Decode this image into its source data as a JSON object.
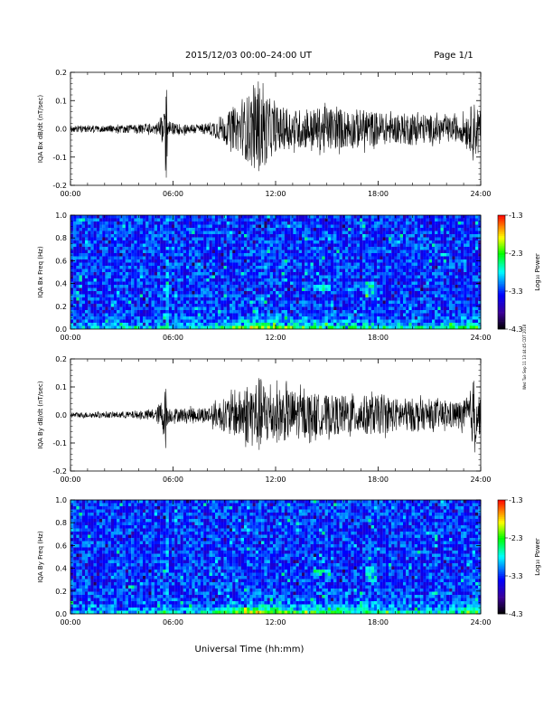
{
  "header": {
    "title": "2015/12/03  00:00–24:00 UT",
    "page": "Page 1/1"
  },
  "side_stamp": "Wed Tue Sep 11 13:44:45 CDT 2018",
  "xlabel_bottom": "Universal Time (hh:mm)",
  "colorbar": {
    "label": "Log₁₀ Power",
    "ticks": [
      "-1.3",
      "-2.3",
      "-3.3",
      "-4.3"
    ],
    "colors": [
      "#ff0000",
      "#ff8000",
      "#ffff00",
      "#00ff00",
      "#00ffff",
      "#0000ff",
      "#3000a0",
      "#000000"
    ]
  },
  "chart_data": [
    {
      "type": "line",
      "ylabel": "IQA Bx dB/dt (nT/sec)",
      "ylim": [
        -0.2,
        0.2
      ],
      "yticks": [
        "0.2",
        "0.1",
        "0.0",
        "-0.1",
        "-0.2"
      ],
      "xticks": [
        "00:00",
        "06:00",
        "12:00",
        "18:00",
        "24:00"
      ],
      "xlim_hours": [
        0,
        24
      ],
      "series": [
        {
          "x": [
            0,
            1,
            2,
            3,
            4,
            5,
            5.5,
            5.6,
            5.7,
            6,
            7,
            8,
            9,
            10,
            10.5,
            11,
            11.5,
            12,
            13,
            14,
            15,
            16,
            17,
            18,
            19,
            20,
            21,
            22,
            23,
            23.7,
            24
          ],
          "amplitude": [
            0.012,
            0.012,
            0.012,
            0.014,
            0.016,
            0.02,
            0.06,
            0.2,
            0.03,
            0.02,
            0.018,
            0.02,
            0.05,
            0.09,
            0.13,
            0.16,
            0.12,
            0.08,
            0.07,
            0.07,
            0.08,
            0.07,
            0.07,
            0.06,
            0.05,
            0.06,
            0.05,
            0.04,
            0.05,
            0.1,
            0.06
          ]
        }
      ]
    },
    {
      "type": "heatmap",
      "ylabel": "IQA Bx Freq (Hz)",
      "ylim": [
        0.0,
        1.0
      ],
      "yticks": [
        "1.0",
        "0.8",
        "0.6",
        "0.4",
        "0.2",
        "0.0"
      ],
      "xticks": [
        "00:00",
        "06:00",
        "12:00",
        "18:00",
        "24:00"
      ],
      "xlim_hours": [
        0,
        24
      ],
      "colorbar_range": [
        -4.3,
        -1.3
      ]
    },
    {
      "type": "line",
      "ylabel": "IQA By dB/dt (nT/sec)",
      "ylim": [
        -0.2,
        0.2
      ],
      "yticks": [
        "0.2",
        "0.1",
        "0.0",
        "-0.1",
        "-0.2"
      ],
      "xticks": [
        "00:00",
        "06:00",
        "12:00",
        "18:00",
        "24:00"
      ],
      "xlim_hours": [
        0,
        24
      ],
      "series": [
        {
          "x": [
            0,
            1,
            2,
            3,
            4,
            5,
            5.5,
            5.6,
            5.7,
            6,
            7,
            8,
            9,
            10,
            10.5,
            11,
            11.5,
            12,
            13,
            14,
            15,
            16,
            17,
            18,
            19,
            20,
            21,
            22,
            23,
            23.7,
            24
          ],
          "amplitude": [
            0.01,
            0.01,
            0.01,
            0.012,
            0.014,
            0.02,
            0.08,
            0.14,
            0.03,
            0.025,
            0.025,
            0.03,
            0.06,
            0.09,
            0.11,
            0.14,
            0.11,
            0.1,
            0.09,
            0.08,
            0.07,
            0.07,
            0.07,
            0.07,
            0.06,
            0.06,
            0.05,
            0.05,
            0.05,
            0.12,
            0.06
          ]
        }
      ]
    },
    {
      "type": "heatmap",
      "ylabel": "IQA By Freq (Hz)",
      "ylim": [
        0.0,
        1.0
      ],
      "yticks": [
        "1.0",
        "0.8",
        "0.6",
        "0.4",
        "0.2",
        "0.0"
      ],
      "xticks": [
        "00:00",
        "06:00",
        "12:00",
        "18:00",
        "24:00"
      ],
      "xlim_hours": [
        0,
        24
      ],
      "colorbar_range": [
        -4.3,
        -1.3
      ]
    }
  ]
}
